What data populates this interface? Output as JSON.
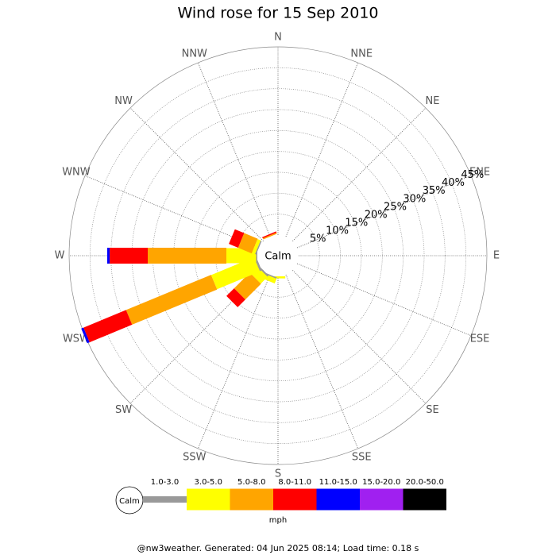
{
  "chart_data": {
    "type": "windrose",
    "title": "Wind rose for 15 Sep 2010",
    "calm_label": "Calm",
    "units": "mph",
    "directions": [
      "N",
      "NNE",
      "NE",
      "ENE",
      "E",
      "ESE",
      "SE",
      "SSE",
      "S",
      "SSW",
      "SW",
      "WSW",
      "W",
      "WNW",
      "NW",
      "NNW"
    ],
    "rlim": [
      0,
      45
    ],
    "rticks": [
      {
        "value": 5,
        "label": "5%"
      },
      {
        "value": 10,
        "label": "10%"
      },
      {
        "value": 15,
        "label": "15%"
      },
      {
        "value": 20,
        "label": "20%"
      },
      {
        "value": 25,
        "label": "25%"
      },
      {
        "value": 30,
        "label": "30%"
      },
      {
        "value": 35,
        "label": "35%"
      },
      {
        "value": 40,
        "label": "40%"
      },
      {
        "value": 45,
        "label": "45%"
      }
    ],
    "series": [
      {
        "name": "1.0-3.0",
        "color": "#999999",
        "values": [
          0,
          0,
          0,
          0,
          0,
          0,
          0,
          0,
          0,
          0.3,
          0.4,
          0.5,
          0.3,
          0.3,
          0,
          0
        ]
      },
      {
        "name": "3.0-5.0",
        "color": "#ffff00",
        "values": [
          0,
          0,
          0,
          0,
          0,
          0,
          0,
          0,
          0.5,
          1.2,
          2.3,
          11.1,
          7.1,
          0.8,
          0,
          0
        ]
      },
      {
        "name": "5.0-8.0",
        "color": "#ffa500",
        "values": [
          0,
          0,
          0,
          0,
          0,
          0,
          0,
          0,
          0,
          0,
          5.3,
          22,
          18.8,
          3.5,
          0,
          0.3
        ]
      },
      {
        "name": "8.0-11.0",
        "color": "#ff0000",
        "values": [
          0,
          0,
          0,
          0,
          0,
          0,
          0,
          0,
          0,
          0,
          2.6,
          11,
          9.1,
          2.4,
          0,
          0.3
        ]
      },
      {
        "name": "11.0-15.0",
        "color": "#0000ff",
        "values": [
          0,
          0,
          0,
          0,
          0,
          0,
          0,
          0,
          0,
          0,
          0,
          0.6,
          0.6,
          0,
          0,
          0
        ]
      },
      {
        "name": "15.0-20.0",
        "color": "#a020f0",
        "values": [
          0,
          0,
          0,
          0,
          0,
          0,
          0,
          0,
          0,
          0,
          0,
          0,
          0,
          0,
          0,
          0
        ]
      },
      {
        "name": "20.0-50.0",
        "color": "#000000",
        "values": [
          0,
          0,
          0,
          0,
          0,
          0,
          0,
          0,
          0,
          0,
          0,
          0,
          0,
          0,
          0,
          0
        ]
      }
    ],
    "footer": "@nw3weather. Generated: 04 Jun 2025 08:14; Load time: 0.18 s"
  }
}
